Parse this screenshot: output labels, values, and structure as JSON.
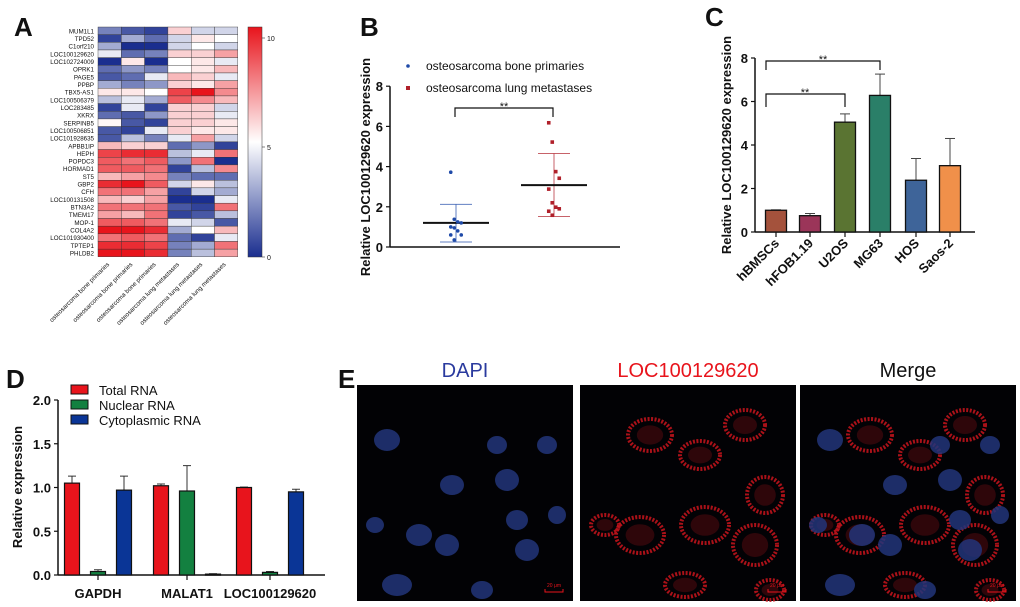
{
  "panel_labels": {
    "a": "A",
    "b": "B",
    "c": "C",
    "d": "D",
    "e": "E"
  },
  "chart_data": [
    {
      "panel": "A",
      "type": "heatmap",
      "rows": [
        "MUM1L1",
        "TPD52",
        "C1orf210",
        "LOC100129620",
        "LOC102724009",
        "OPRK1",
        "PAGE5",
        "PPBP",
        "TBX5-AS1",
        "LOC100506379",
        "LOC283485",
        "XKRX",
        "SERPINB5",
        "LOC100506851",
        "LOC101928635",
        "APBB1IP",
        "HEPH",
        "POPDC3",
        "HORMAD1",
        "ST5",
        "GBP2",
        "CFH",
        "LOC100131508",
        "BTN3A2",
        "TMEM17",
        "MOP-1",
        "COL4A2",
        "LOC101930400",
        "TPTEP1",
        "PHLDB2"
      ],
      "columns": [
        "osteosarcoma bone primaries",
        "osteosarcoma bone primaries",
        "osteosarcoma bone primaries",
        "osteosarcoma lung metastases",
        "osteosarcoma lung metastases",
        "osteosarcoma lung metastases"
      ],
      "values": [
        [
          2,
          1,
          0.5,
          6,
          4,
          4
        ],
        [
          0.5,
          3,
          1.5,
          4,
          5.5,
          5
        ],
        [
          3,
          0,
          0,
          4,
          5,
          4
        ],
        [
          4.5,
          1.5,
          2,
          6,
          6,
          7
        ],
        [
          0,
          5.5,
          0,
          5,
          5.5,
          4.5
        ],
        [
          1.5,
          2.5,
          2,
          5,
          5.5,
          6.5
        ],
        [
          1,
          1.5,
          4.5,
          6.5,
          6,
          4.5
        ],
        [
          3,
          2,
          2.5,
          6,
          5.5,
          7
        ],
        [
          5.5,
          5.5,
          5,
          9,
          10,
          7.5
        ],
        [
          3.5,
          4.5,
          3,
          8.5,
          7.5,
          6.5
        ],
        [
          0.5,
          4.5,
          0.5,
          6,
          6,
          4
        ],
        [
          1.5,
          1,
          2.5,
          6,
          6,
          4.5
        ],
        [
          5.2,
          1,
          0.5,
          6,
          6,
          5.5
        ],
        [
          1,
          0.5,
          4.5,
          6,
          5.5,
          5.5
        ],
        [
          1,
          3.5,
          2,
          4.5,
          7,
          4
        ],
        [
          6.5,
          6,
          6,
          1.5,
          2.5,
          0.5
        ],
        [
          9,
          9.5,
          9.5,
          3.5,
          4.5,
          8
        ],
        [
          8.5,
          8,
          8.5,
          2.5,
          8,
          0
        ],
        [
          8.5,
          8.5,
          8,
          0.5,
          3.5,
          7.5
        ],
        [
          6.5,
          7,
          7.5,
          2,
          1.5,
          1.5
        ],
        [
          9.5,
          10,
          8.5,
          4,
          5.5,
          3.5
        ],
        [
          8,
          8,
          7,
          0.5,
          4,
          3
        ],
        [
          6.5,
          6,
          7,
          0,
          0,
          4.5
        ],
        [
          8,
          8,
          8,
          1,
          0.5,
          8
        ],
        [
          7,
          6.5,
          8,
          0.5,
          1,
          3.5
        ],
        [
          8.5,
          8.5,
          8,
          4.5,
          4,
          1
        ],
        [
          10,
          10,
          9.5,
          3,
          5,
          6.5
        ],
        [
          8,
          8.5,
          8,
          1.5,
          0.5,
          4.5
        ],
        [
          9.5,
          9.5,
          9,
          2,
          3,
          8
        ],
        [
          10,
          10,
          9.5,
          2,
          3.5,
          7
        ]
      ],
      "colorbar": {
        "min": 0,
        "mid": 5,
        "max": 10,
        "tick_labels": [
          "10",
          "5",
          "0"
        ],
        "low_color": "#1a2e8f",
        "mid_color": "#ffffff",
        "high_color": "#e8141c"
      }
    },
    {
      "panel": "B",
      "type": "scatter",
      "ylabel": "Relative  LOC100129620  expression",
      "ylim": [
        0,
        8
      ],
      "yticks": [
        "0",
        "2",
        "4",
        "6",
        "8"
      ],
      "series": [
        {
          "name": "osteosarcoma bone primaries",
          "color": "#1f4aa8",
          "values": [
            3.72,
            1.38,
            1.25,
            1.2,
            1.0,
            0.95,
            0.8,
            0.6,
            0.6,
            0.35
          ],
          "mean": 1.2,
          "sd_low": 0.25,
          "sd_high": 2.12
        },
        {
          "name": "osteosarcoma lung metastases",
          "color": "#b0202a",
          "values": [
            6.18,
            5.22,
            3.75,
            3.42,
            2.88,
            2.2,
            1.98,
            1.9,
            1.78,
            1.58
          ],
          "mean": 3.08,
          "sd_low": 1.52,
          "sd_high": 4.65
        }
      ],
      "significance": "**"
    },
    {
      "panel": "C",
      "type": "bar",
      "ylabel": "Relative LOC100129620 expression",
      "ylim": [
        0,
        8
      ],
      "yticks": [
        "0",
        "2",
        "4",
        "6",
        "8"
      ],
      "categories": [
        "hBMSCs",
        "hFOB1.19",
        "U2OS",
        "MG63",
        "HOS",
        "Saos-2"
      ],
      "values": [
        1.0,
        0.75,
        5.05,
        6.28,
        2.38,
        3.05
      ],
      "errors": [
        0.02,
        0.1,
        0.38,
        0.98,
        1.0,
        1.25
      ],
      "colors": [
        "#a4523c",
        "#9b3559",
        "#5a7432",
        "#2a7f68",
        "#3e6499",
        "#f0904a"
      ],
      "significance": [
        {
          "from": "hBMSCs",
          "to": "U2OS",
          "label": "**"
        },
        {
          "from": "hBMSCs",
          "to": "MG63",
          "label": "**"
        }
      ]
    },
    {
      "panel": "D",
      "type": "bar",
      "ylabel": "Relative expression",
      "ylim": [
        0,
        2.0
      ],
      "yticks": [
        "0.0",
        "0.5",
        "1.0",
        "1.5",
        "2.0"
      ],
      "categories": [
        "GAPDH",
        "MALAT1",
        "LOC100129620"
      ],
      "series": [
        {
          "name": "Total RNA",
          "color": "#e8141c",
          "values": [
            1.05,
            1.02,
            1.0
          ],
          "errors": [
            0.08,
            0.02,
            0.005
          ]
        },
        {
          "name": "Nuclear RNA",
          "color": "#138040",
          "values": [
            0.04,
            0.96,
            0.03
          ],
          "errors": [
            0.02,
            0.29,
            0.01
          ]
        },
        {
          "name": "Cytoplasmic RNA",
          "color": "#0a3596",
          "values": [
            0.97,
            0.01,
            0.95
          ],
          "errors": [
            0.16,
            0.005,
            0.03
          ]
        }
      ],
      "legend": "top-left"
    }
  ],
  "panel_e": {
    "titles": [
      {
        "text": "DAPI",
        "color": "#2a3a9e"
      },
      {
        "text": "LOC100129620",
        "color": "#e8141c"
      },
      {
        "text": "Merge",
        "color": "#111111"
      }
    ],
    "scale_bar": "20 μm"
  }
}
